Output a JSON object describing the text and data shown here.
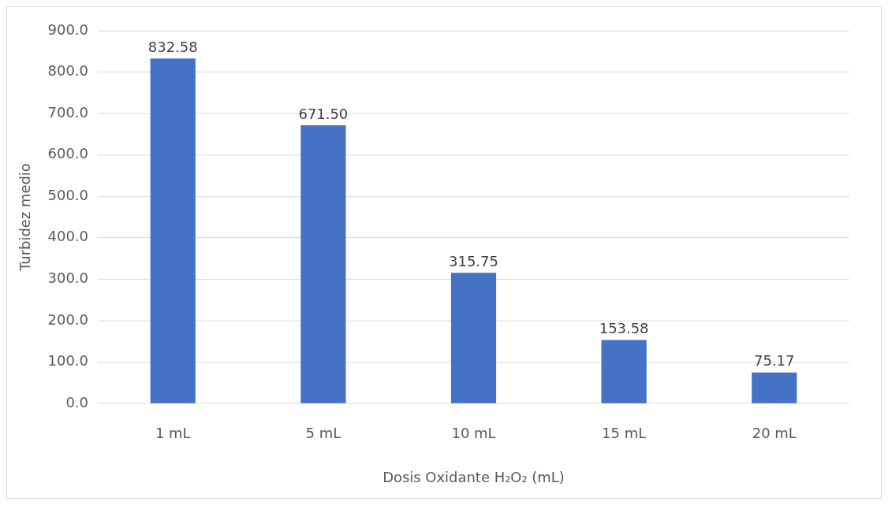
{
  "chart_data": {
    "type": "bar",
    "xlabel": "Dosis Oxidante H₂O₂ (mL)",
    "ylabel": "Turbidez medio",
    "categories": [
      "1 mL",
      "5 mL",
      "10 mL",
      "15 mL",
      "20 mL"
    ],
    "values": [
      832.58,
      671.5,
      315.75,
      153.58,
      75.17
    ],
    "value_labels": [
      "832.58",
      "671.50",
      "315.75",
      "153.58",
      "75.17"
    ],
    "color": "#4472c4",
    "ylim": [
      0,
      900
    ],
    "yticks": [
      {
        "value": 0,
        "label": "0.0"
      },
      {
        "value": 100,
        "label": "100.0"
      },
      {
        "value": 200,
        "label": "200.0"
      },
      {
        "value": 300,
        "label": "300.0"
      },
      {
        "value": 400,
        "label": "400.0"
      },
      {
        "value": 500,
        "label": "500.0"
      },
      {
        "value": 600,
        "label": "600.0"
      },
      {
        "value": 700,
        "label": "700.0"
      },
      {
        "value": 800,
        "label": "800.0"
      },
      {
        "value": 900,
        "label": "900.0"
      }
    ],
    "grid": "y",
    "legend": false
  }
}
